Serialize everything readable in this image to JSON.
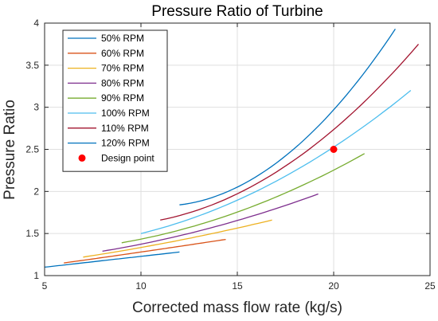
{
  "chart_data": {
    "type": "line",
    "title": "Pressure Ratio of Turbine",
    "xlabel": "Corrected mass flow rate (kg/s)",
    "ylabel": "Pressure Ratio",
    "xlim": [
      5,
      25
    ],
    "ylim": [
      1,
      4
    ],
    "xticks": [
      "5",
      "10",
      "15",
      "20",
      "25"
    ],
    "yticks": [
      "1",
      "1.5",
      "2",
      "2.5",
      "3",
      "3.5",
      "4"
    ],
    "grid": true,
    "legend_position": "top-left",
    "series": [
      {
        "name": "50% RPM",
        "color": "#0072BD",
        "x": [
          5.0,
          12.0
        ],
        "y": [
          1.1,
          1.28
        ]
      },
      {
        "name": "60% RPM",
        "color": "#D95319",
        "x": [
          6.0,
          10.0,
          14.4
        ],
        "y": [
          1.15,
          1.28,
          1.43
        ]
      },
      {
        "name": "70% RPM",
        "color": "#EDB120",
        "x": [
          7.0,
          12.0,
          16.8
        ],
        "y": [
          1.22,
          1.42,
          1.66
        ]
      },
      {
        "name": "80% RPM",
        "color": "#7E2F8E",
        "x": [
          8.0,
          14.0,
          19.2
        ],
        "y": [
          1.29,
          1.59,
          1.97
        ]
      },
      {
        "name": "90% RPM",
        "color": "#77AC30",
        "x": [
          9.0,
          16.0,
          21.6
        ],
        "y": [
          1.39,
          1.84,
          2.45
        ]
      },
      {
        "name": "100% RPM",
        "color": "#4DBEEE",
        "x": [
          10.0,
          17.0,
          24.0
        ],
        "y": [
          1.5,
          2.12,
          3.2
        ]
      },
      {
        "name": "110% RPM",
        "color": "#A2142F",
        "x": [
          11.0,
          18.0,
          24.4
        ],
        "y": [
          1.66,
          2.38,
          3.75
        ]
      },
      {
        "name": "120% RPM",
        "color": "#0072BD",
        "x": [
          12.0,
          18.5,
          23.2
        ],
        "y": [
          1.84,
          2.62,
          3.93
        ]
      }
    ],
    "points": [
      {
        "name": "Design point",
        "color": "#FF0000",
        "x": 20.0,
        "y": 2.5
      }
    ]
  }
}
